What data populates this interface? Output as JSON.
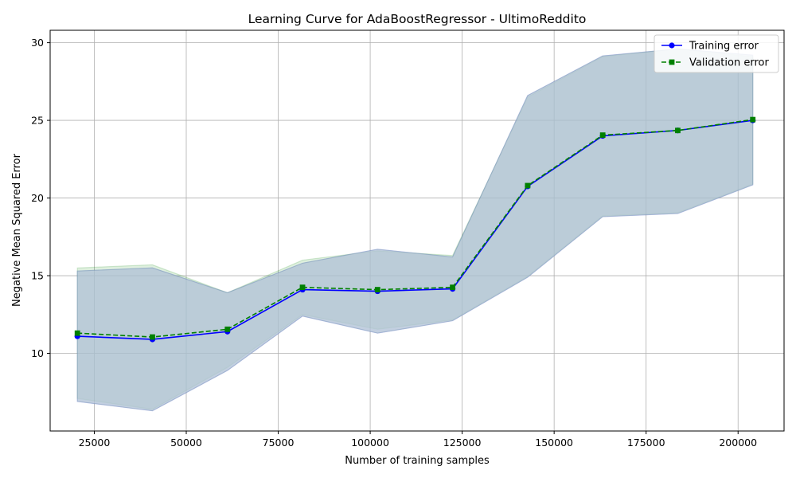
{
  "chart_data": {
    "type": "line",
    "title": "Learning Curve for AdaBoostRegressor - UltimoReddito",
    "xlabel": "Number of training samples",
    "ylabel": "Negative Mean Squared Error",
    "xlim": [
      13000,
      212500
    ],
    "ylim": [
      5.0,
      30.8
    ],
    "xticks": [
      25000,
      50000,
      75000,
      100000,
      125000,
      150000,
      175000,
      200000
    ],
    "yticks": [
      10,
      15,
      20,
      25,
      30
    ],
    "grid": true,
    "legend_position": "top-right",
    "x": [
      20400,
      40800,
      61200,
      81600,
      102000,
      122400,
      142800,
      163200,
      183600,
      204000
    ],
    "series": [
      {
        "name": "Training error",
        "color": "#0000ff",
        "marker": "circle",
        "linestyle": "solid",
        "values": [
          11.1,
          10.9,
          11.4,
          14.1,
          14.0,
          14.15,
          20.75,
          24.0,
          24.35,
          25.0
        ],
        "band_upper": [
          15.3,
          15.5,
          13.9,
          15.8,
          16.7,
          16.2,
          26.6,
          29.15,
          29.6,
          29.2
        ],
        "band_lower": [
          6.9,
          6.3,
          8.9,
          12.4,
          11.3,
          12.1,
          14.9,
          18.8,
          19.0,
          20.85
        ],
        "band_color": "#0000ff"
      },
      {
        "name": "Validation error",
        "color": "#008000",
        "marker": "square",
        "linestyle": "dashed",
        "values": [
          11.3,
          11.05,
          11.55,
          14.25,
          14.1,
          14.25,
          20.8,
          24.05,
          24.35,
          25.05
        ],
        "band_upper": [
          15.5,
          15.7,
          13.9,
          16.0,
          16.6,
          16.3,
          26.5,
          29.1,
          29.6,
          29.1
        ],
        "band_lower": [
          7.1,
          6.4,
          9.1,
          12.5,
          11.55,
          12.15,
          14.95,
          18.85,
          19.05,
          20.9
        ],
        "band_color": "#008000"
      }
    ],
    "band_fill_color": "#b8cad6",
    "grid_color": "#b0b0b0"
  }
}
